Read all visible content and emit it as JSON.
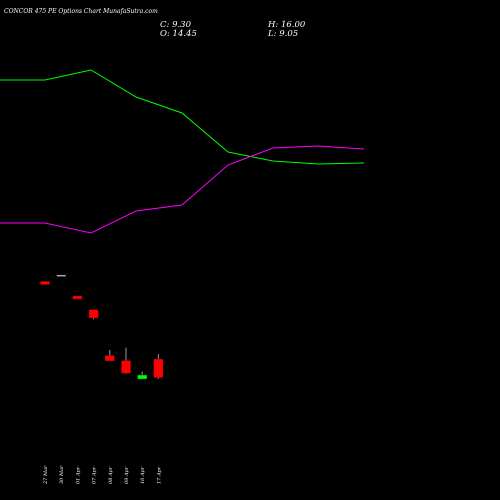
{
  "chart_data": {
    "type": "candlestick",
    "title": "CONCOR 475 PE Options  Chart MunafaSutra.com",
    "ohlc_readout": {
      "close": "C: 9.30",
      "high": "H: 16.00",
      "open": "O: 14.45",
      "low": "L: 9.05"
    },
    "x_labels": [
      "27 Mar",
      "30 Mar",
      "01 Apr",
      "07 Apr",
      "08 Apr",
      "09 Apr",
      "16 Apr",
      "17 Apr"
    ],
    "ylim": [
      0,
      30
    ],
    "candles": [
      {
        "date": "27 Mar",
        "open": 23.6,
        "high": 23.6,
        "low": 23.2,
        "close": 23.2
      },
      {
        "date": "30 Mar",
        "open": 24.4,
        "high": 24.4,
        "low": 24.4,
        "close": 24.4
      },
      {
        "date": "01 Apr",
        "open": 21.6,
        "high": 21.6,
        "low": 21.2,
        "close": 21.2
      },
      {
        "date": "07 Apr",
        "open": 19.7,
        "high": 19.7,
        "low": 18.4,
        "close": 18.6
      },
      {
        "date": "08 Apr",
        "open": 13.4,
        "high": 14.2,
        "low": 12.7,
        "close": 12.7
      },
      {
        "date": "09 Apr",
        "open": 12.7,
        "high": 14.5,
        "low": 10.9,
        "close": 11.0
      },
      {
        "date": "16 Apr",
        "open": 10.2,
        "high": 11.2,
        "low": 10.2,
        "close": 10.7
      },
      {
        "date": "17 Apr",
        "open": 12.9,
        "high": 13.6,
        "low": 10.2,
        "close": 10.4
      }
    ],
    "overlay_lines": [
      {
        "color": "#00ff00",
        "points": [
          [
            0,
            80
          ],
          [
            45,
            80
          ],
          [
            91,
            70
          ],
          [
            136,
            97
          ],
          [
            182,
            113
          ],
          [
            228,
            152
          ],
          [
            273,
            161
          ],
          [
            318,
            164
          ],
          [
            364,
            163
          ]
        ]
      },
      {
        "color": "#ff00ff",
        "points": [
          [
            0,
            223
          ],
          [
            45,
            223
          ],
          [
            91,
            233
          ],
          [
            136,
            211
          ],
          [
            182,
            205
          ],
          [
            228,
            165
          ],
          [
            273,
            148
          ],
          [
            318,
            146
          ],
          [
            364,
            149
          ]
        ]
      }
    ]
  },
  "colors": {
    "background": "#000000",
    "bearish": "#ff0000",
    "bullish": "#00ff00",
    "doji": "#aaaaaa",
    "wick": "#999999",
    "text": "#ffffff"
  }
}
